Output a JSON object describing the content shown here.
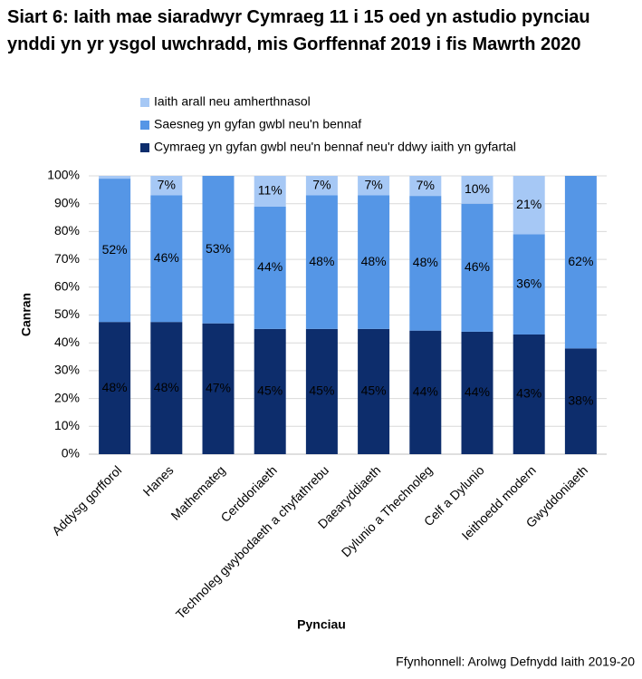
{
  "chart_data": {
    "type": "stacked_bar",
    "title": "Siart 6: Iaith mae siaradwyr Cymraeg 11 i 15 oed yn astudio pynciau ynddi yn yr ysgol uwchradd, mis Gorffennaf 2019 i fis Mawrth 2020",
    "x_label": "Pynciau",
    "y_label": "Canran",
    "source": "Ffynhonnell: Arolwg Defnydd Iaith 2019-20",
    "categories": [
      "Addysg gorfforol",
      "Hanes",
      "Mathemateg",
      "Cerddoriaeth",
      "Technoleg gwybodaeth a chyfathrebu",
      "Daearyddiaeth",
      "Dylunio a Thechnoleg",
      "Celf a Dylunio",
      "Ieithoedd modern",
      "Gwyddoniaeth"
    ],
    "series": [
      {
        "name": "Cymraeg yn gyfan gwbl neu'n bennaf neu'r ddwy iaith yn gyfartal",
        "color": "#0d2d6c",
        "values": [
          47.5,
          47.5,
          47,
          45,
          45,
          45,
          44.4,
          44,
          43,
          38
        ],
        "value_labels": [
          "48%",
          "48%",
          "47%",
          "45%",
          "45%",
          "45%",
          "44%",
          "44%",
          "43%",
          "38%"
        ]
      },
      {
        "name": "Saesneg yn gyfan gwbl neu'n bennaf",
        "color": "#5596e6",
        "values": [
          51.5,
          45.5,
          53,
          44,
          48,
          48,
          48.4,
          46,
          36,
          62
        ],
        "value_labels": [
          "52%",
          "46%",
          "53%",
          "44%",
          "48%",
          "48%",
          "48%",
          "46%",
          "36%",
          "62%"
        ]
      },
      {
        "name": "Iaith arall neu amherthnasol",
        "color": "#a6c8f5",
        "values": [
          1,
          7,
          0,
          11,
          7,
          7,
          7.2,
          10,
          21,
          0
        ],
        "value_labels": [
          null,
          "7%",
          null,
          "11%",
          "7%",
          "7%",
          "7%",
          "10%",
          "21%",
          null
        ]
      }
    ],
    "ylim": [
      0,
      100
    ],
    "yticks": [
      {
        "value": 0,
        "label": "0%"
      },
      {
        "value": 10,
        "label": "10%"
      },
      {
        "value": 20,
        "label": "20%"
      },
      {
        "value": 30,
        "label": "30%"
      },
      {
        "value": 40,
        "label": "40%"
      },
      {
        "value": 50,
        "label": "50%"
      },
      {
        "value": 60,
        "label": "60%"
      },
      {
        "value": 70,
        "label": "70%"
      },
      {
        "value": 80,
        "label": "80%"
      },
      {
        "value": 90,
        "label": "90%"
      },
      {
        "value": 100,
        "label": "100%"
      }
    ],
    "grid": true,
    "legend": "top"
  }
}
